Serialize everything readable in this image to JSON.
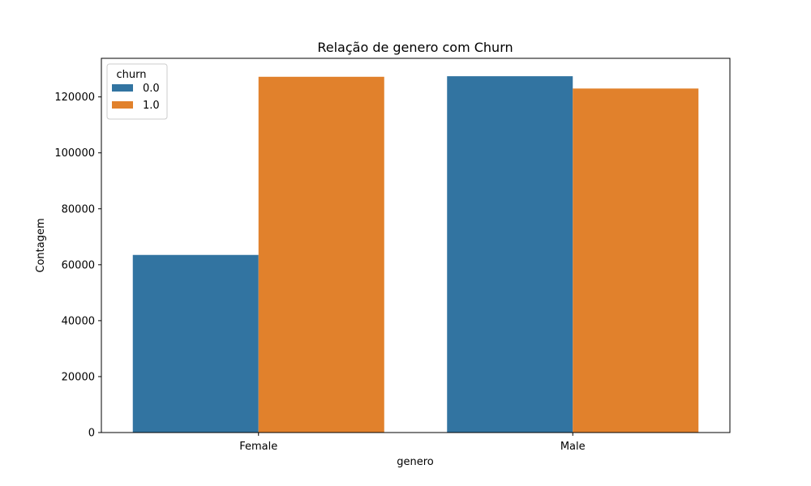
{
  "chart_data": {
    "type": "bar",
    "title": "Relação de genero com Churn",
    "xlabel": "genero",
    "ylabel": "Contagem",
    "categories": [
      "Female",
      "Male"
    ],
    "series": [
      {
        "name": "0.0",
        "color": "#3274a1",
        "values": [
          63500,
          127400
        ]
      },
      {
        "name": "1.0",
        "color": "#e1812c",
        "values": [
          127200,
          123000
        ]
      }
    ],
    "ylim": [
      0,
      133800
    ],
    "yticks": [
      0,
      20000,
      40000,
      60000,
      80000,
      100000,
      120000
    ],
    "ytick_labels": [
      "0",
      "20000",
      "40000",
      "60000",
      "80000",
      "100000",
      "120000"
    ],
    "legend": {
      "title": "churn",
      "placement": "top-left"
    },
    "grid": false
  }
}
